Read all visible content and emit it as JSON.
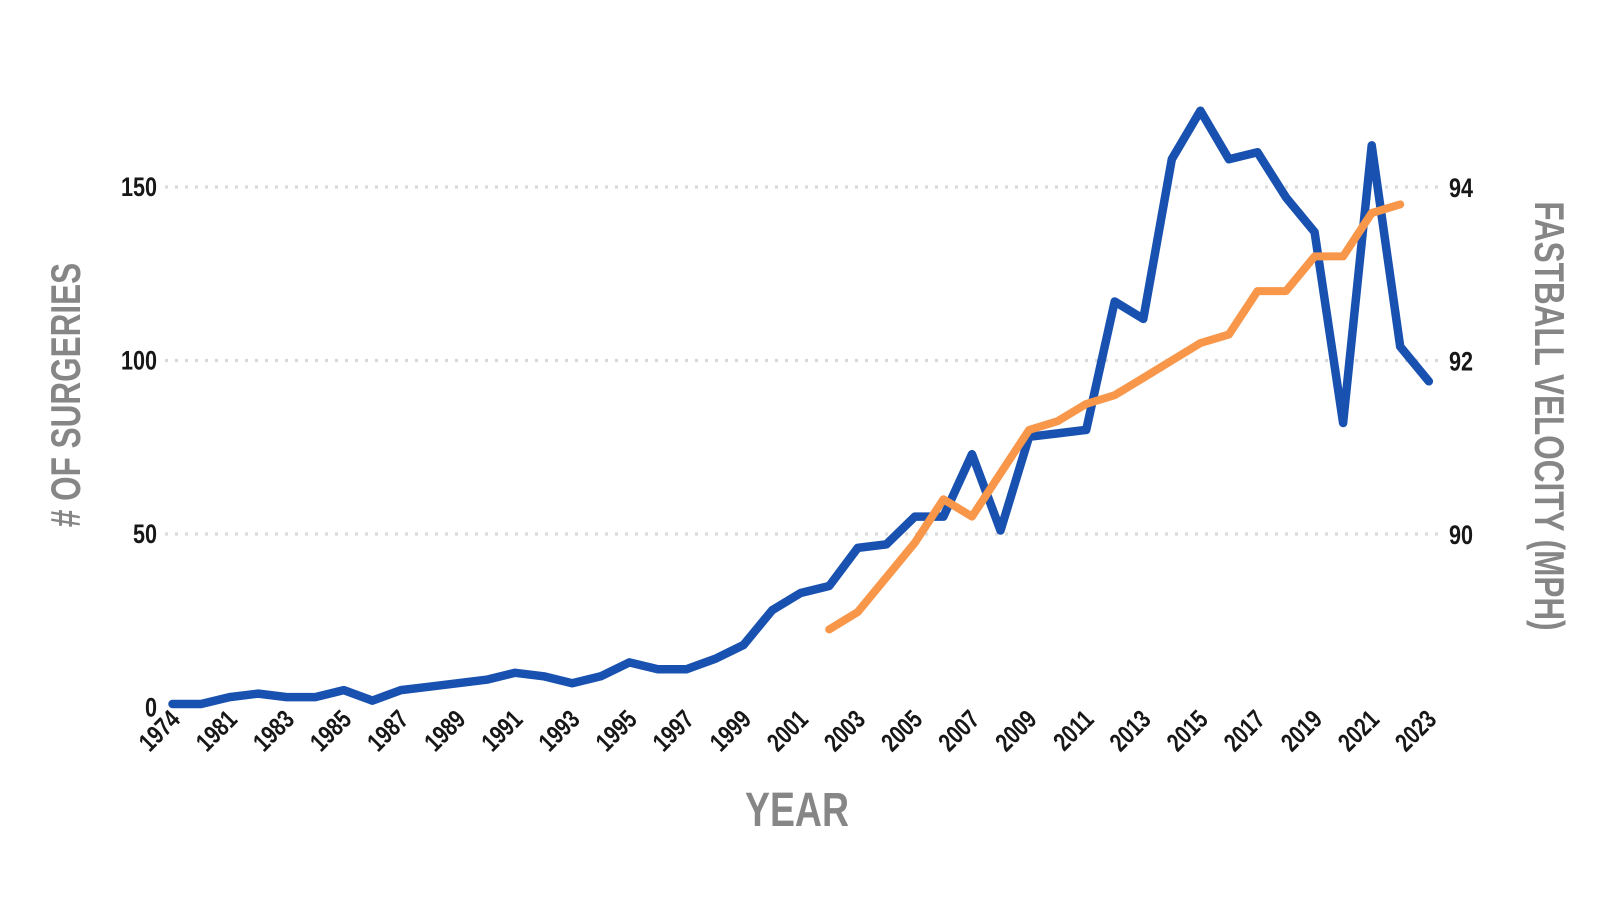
{
  "chart_data": {
    "type": "line",
    "title": "",
    "xlabel": "YEAR",
    "ylabel_left": "# OF SURGERIES",
    "ylabel_right": "FASTBALL VELOCITY (MPH)",
    "grid": "horizontal-dotted",
    "legend": "none",
    "categories": [
      1974,
      1980,
      1981,
      1982,
      1983,
      1984,
      1985,
      1986,
      1987,
      1988,
      1989,
      1990,
      1991,
      1992,
      1993,
      1994,
      1995,
      1996,
      1997,
      1998,
      1999,
      2000,
      2001,
      2002,
      2003,
      2004,
      2005,
      2006,
      2007,
      2008,
      2009,
      2010,
      2011,
      2012,
      2013,
      2014,
      2015,
      2016,
      2017,
      2018,
      2019,
      2020,
      2021,
      2022,
      2023
    ],
    "x_axis_tick_labels": [
      "1974",
      "1981",
      "1983",
      "1985",
      "1987",
      "1989",
      "1991",
      "1993",
      "1995",
      "1997",
      "1999",
      "2001",
      "2003",
      "2005",
      "2007",
      "2009",
      "2011",
      "2013",
      "2015",
      "2017",
      "2019",
      "2021",
      "2023"
    ],
    "left_axis": {
      "ticks": [
        0,
        50,
        100,
        150
      ],
      "range": [
        0,
        178
      ]
    },
    "right_axis": {
      "ticks": [
        90,
        92,
        94
      ],
      "range": [
        88.0,
        95.1
      ]
    },
    "series": [
      {
        "name": "# of surgeries",
        "axis": "left",
        "color": "#1951b0",
        "values": [
          1,
          1,
          3,
          4,
          3,
          3,
          5,
          2,
          5,
          6,
          7,
          8,
          10,
          9,
          7,
          9,
          13,
          11,
          11,
          14,
          18,
          28,
          33,
          35,
          46,
          47,
          55,
          55,
          73,
          51,
          78,
          79,
          80,
          117,
          112,
          158,
          172,
          158,
          160,
          147,
          137,
          82,
          162,
          104,
          94
        ]
      },
      {
        "name": "fastball velocity (mph)",
        "axis": "right",
        "color": "#f8964a",
        "values": [
          null,
          null,
          null,
          null,
          null,
          null,
          null,
          null,
          null,
          null,
          null,
          null,
          null,
          null,
          null,
          null,
          null,
          null,
          null,
          null,
          null,
          null,
          null,
          88.9,
          89.1,
          89.5,
          89.9,
          90.4,
          90.2,
          90.7,
          91.2,
          91.3,
          91.5,
          91.6,
          91.8,
          92.0,
          92.2,
          92.3,
          92.8,
          92.8,
          93.2,
          93.2,
          93.7,
          93.8,
          null
        ]
      }
    ],
    "colors": {
      "surgeries_line": "#1951b0",
      "velocity_line": "#f8964a",
      "gridline": "#d9d9d9",
      "tick_text": "#171717",
      "axis_title_text": "#868686",
      "background": "#ffffff"
    }
  }
}
